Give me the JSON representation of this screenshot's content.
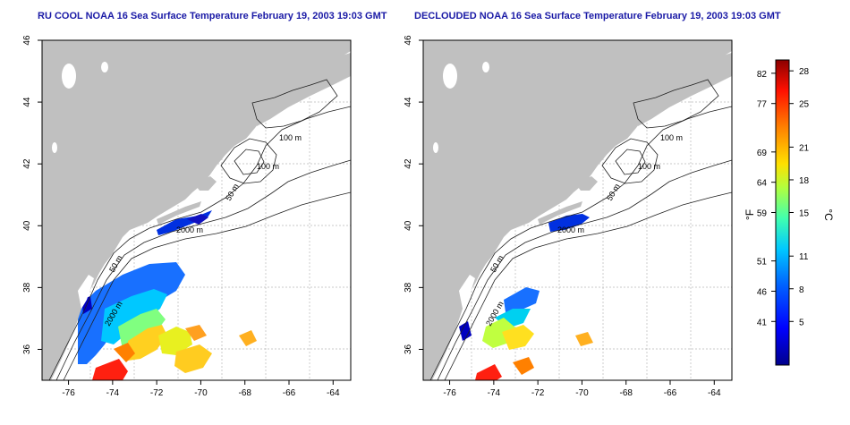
{
  "panels": [
    {
      "title": "RU COOL NOAA 16 Sea Surface Temperature February 19, 2003 19:03 GMT",
      "contour_labels": [
        "100 m",
        "100 m",
        "50 m",
        "2000 m",
        "50 m",
        "2000 m"
      ]
    },
    {
      "title": "DECLOUDED NOAA 16 Sea Surface Temperature February 19, 2003 19:03 GMT",
      "contour_labels": [
        "100 m",
        "100 m",
        "50 m",
        "2000 m",
        "50 m",
        "2000 m"
      ]
    }
  ],
  "axes": {
    "x_ticks": [
      "-76",
      "-74",
      "-72",
      "-70",
      "-68",
      "-66",
      "-64"
    ],
    "y_ticks": [
      "46",
      "44",
      "42",
      "40",
      "38",
      "36"
    ],
    "lon_range": [
      -77.2,
      -63.2
    ],
    "lat_range": [
      35.0,
      46.0
    ]
  },
  "colorbar": {
    "f_label": "°F",
    "c_label": "°C",
    "f_ticks": [
      "82",
      "77",
      "69",
      "64",
      "59",
      "51",
      "46",
      "41"
    ],
    "c_ticks": [
      "28",
      "25",
      "21",
      "18",
      "15",
      "11",
      "8",
      "5"
    ],
    "gradient": [
      "#000080",
      "#0000ff",
      "#0080ff",
      "#00e0ff",
      "#40ffa0",
      "#c0ff40",
      "#ffe000",
      "#ff8000",
      "#ff0000",
      "#800000"
    ]
  },
  "colors": {
    "land": "#c0c0c0",
    "contour": "#202020",
    "grid": "#b8b8b8"
  }
}
